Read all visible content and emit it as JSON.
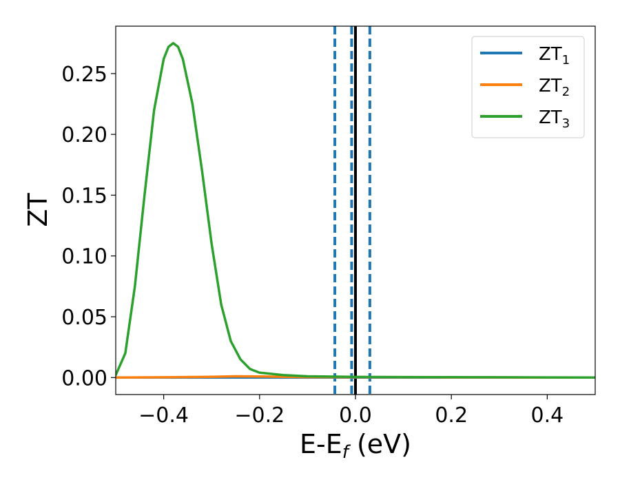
{
  "chart_data": {
    "type": "line",
    "xlabel": "E-E",
    "xlabel_sub": "f",
    "xlabel_unit": " (eV)",
    "ylabel": "ZT",
    "xlim": [
      -0.5,
      0.5
    ],
    "ylim": [
      -0.014,
      0.289
    ],
    "xticks": [
      -0.4,
      -0.2,
      0.0,
      0.2,
      0.4
    ],
    "xtick_labels": [
      "−0.4",
      "−0.2",
      "0.0",
      "0.2",
      "0.4"
    ],
    "yticks": [
      0.0,
      0.05,
      0.1,
      0.15,
      0.2,
      0.25
    ],
    "ytick_labels": [
      "0.00",
      "0.05",
      "0.10",
      "0.15",
      "0.20",
      "0.25"
    ],
    "grid": false,
    "legend_position": "top-right",
    "series": [
      {
        "name": "ZT",
        "name_sub": "1",
        "color": "#1f77b4",
        "x": [
          -0.5,
          0.5
        ],
        "y": [
          0.0,
          0.0
        ]
      },
      {
        "name": "ZT",
        "name_sub": "2",
        "color": "#ff7f0e",
        "x": [
          -0.5,
          -0.4,
          -0.3,
          -0.25,
          -0.2,
          -0.15,
          -0.1,
          0.0,
          0.1,
          0.2,
          0.3,
          0.4,
          0.5
        ],
        "y": [
          0.0,
          0.0002,
          0.0006,
          0.001,
          0.0009,
          0.0006,
          0.0004,
          0.0003,
          0.0002,
          0.0001,
          0.0001,
          0.0,
          0.0
        ]
      },
      {
        "name": "ZT",
        "name_sub": "3",
        "color": "#2ca02c",
        "x": [
          -0.5,
          -0.48,
          -0.46,
          -0.44,
          -0.42,
          -0.4,
          -0.39,
          -0.38,
          -0.37,
          -0.36,
          -0.34,
          -0.32,
          -0.3,
          -0.28,
          -0.26,
          -0.24,
          -0.22,
          -0.2,
          -0.15,
          -0.1,
          0.0,
          0.1,
          0.2,
          0.3,
          0.4,
          0.5
        ],
        "y": [
          0.002,
          0.02,
          0.075,
          0.15,
          0.22,
          0.262,
          0.272,
          0.275,
          0.272,
          0.262,
          0.225,
          0.17,
          0.11,
          0.06,
          0.03,
          0.015,
          0.007,
          0.004,
          0.002,
          0.001,
          0.0005,
          0.0004,
          0.0003,
          0.0002,
          0.0001,
          0.0
        ]
      }
    ],
    "vlines": [
      {
        "x": -0.043,
        "style": "dashed",
        "color": "#1f77b4"
      },
      {
        "x": -0.008,
        "style": "dashed",
        "color": "#1f77b4"
      },
      {
        "x": 0.03,
        "style": "dashed",
        "color": "#1f77b4"
      },
      {
        "x": 0.0,
        "style": "solid",
        "color": "#000000"
      }
    ]
  }
}
